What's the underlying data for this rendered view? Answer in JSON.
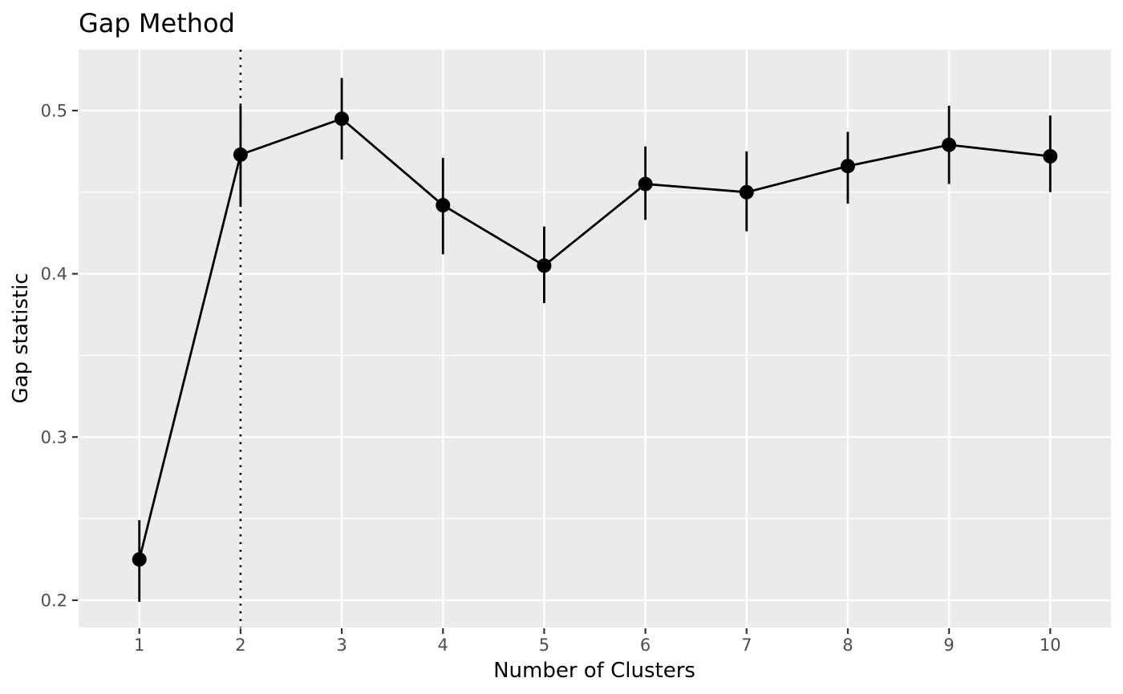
{
  "page": {
    "background": "#FFFFFF"
  },
  "chart_data": {
    "type": "line",
    "title": "Gap Method",
    "xlabel": "Number of Clusters",
    "ylabel": "Gap statistic",
    "x": [
      1,
      2,
      3,
      4,
      5,
      6,
      7,
      8,
      9,
      10
    ],
    "series": [
      {
        "name": "Gap statistic",
        "values": [
          0.225,
          0.473,
          0.495,
          0.442,
          0.405,
          0.455,
          0.45,
          0.466,
          0.479,
          0.472
        ],
        "ymin": [
          0.199,
          0.441,
          0.47,
          0.412,
          0.382,
          0.433,
          0.426,
          0.443,
          0.455,
          0.45
        ],
        "ymax": [
          0.249,
          0.503,
          0.52,
          0.471,
          0.429,
          0.478,
          0.475,
          0.487,
          0.503,
          0.497
        ]
      }
    ],
    "vline_x": 2,
    "vline_style": "dotted",
    "x_ticks": [
      1,
      2,
      3,
      4,
      5,
      6,
      7,
      8,
      9,
      10
    ],
    "y_ticks": [
      0.2,
      0.3,
      0.4,
      0.5
    ],
    "y_tick_labels": [
      "0.2",
      "0.3",
      "0.4",
      "0.5"
    ],
    "y_minor_ticks": [
      0.25,
      0.35,
      0.45
    ],
    "xlim": [
      0.4,
      10.6
    ],
    "ylim": [
      0.1833,
      0.5373
    ],
    "grid": true,
    "legend_position": "none",
    "colors": {
      "panel_background": "#EBEBEB",
      "gridline_major": "#FFFFFF",
      "gridline_minor": "#FFFFFF",
      "data": "#000000",
      "vline": "#000000",
      "tick_label": "#4D4D4D",
      "tick_mark": "#333333",
      "title": "#000000",
      "axis_title": "#000000"
    }
  }
}
